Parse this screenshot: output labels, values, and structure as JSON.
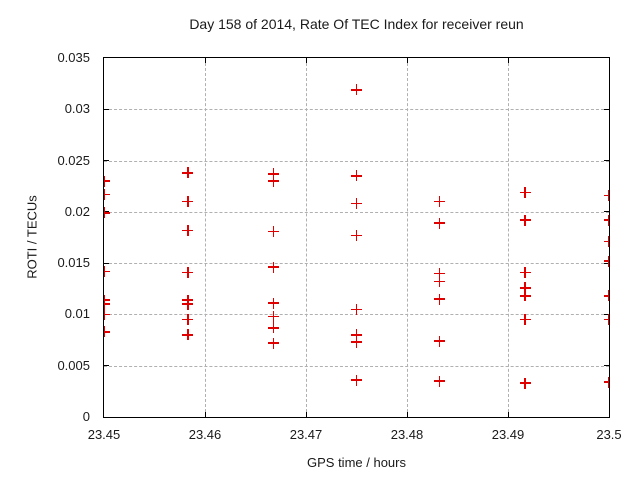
{
  "chart_data": {
    "type": "scatter",
    "title": "Day 158 of 2014, Rate Of TEC Index for receiver reun",
    "xlabel": "GPS time / hours",
    "ylabel": "ROTI / TECUs",
    "xlim": [
      23.45,
      23.5
    ],
    "ylim": [
      0,
      0.035
    ],
    "xticks": [
      {
        "label": "23.45",
        "value": 23.45
      },
      {
        "label": "23.46",
        "value": 23.46
      },
      {
        "label": "23.47",
        "value": 23.47
      },
      {
        "label": "23.48",
        "value": 23.48
      },
      {
        "label": "23.49",
        "value": 23.49
      },
      {
        "label": "23.5",
        "value": 23.5
      }
    ],
    "yticks": [
      {
        "label": "0",
        "value": 0
      },
      {
        "label": "0.005",
        "value": 0.005
      },
      {
        "label": "0.01",
        "value": 0.01
      },
      {
        "label": "0.015",
        "value": 0.015
      },
      {
        "label": "0.02",
        "value": 0.02
      },
      {
        "label": "0.025",
        "value": 0.025
      },
      {
        "label": "0.03",
        "value": 0.03
      },
      {
        "label": "0.035",
        "value": 0.035
      }
    ],
    "grid": true,
    "legend": false,
    "marker": "plus",
    "marker_color": "#e00000",
    "grid_color": "#b0b0b0",
    "border_color": "#000000",
    "points": [
      [
        23.45,
        0.023
      ],
      [
        23.45,
        0.0217
      ],
      [
        23.45,
        0.0199
      ],
      [
        23.45,
        0.0142
      ],
      [
        23.45,
        0.0114
      ],
      [
        23.45,
        0.011
      ],
      [
        23.45,
        0.01
      ],
      [
        23.45,
        0.0083
      ],
      [
        23.4583,
        0.0238
      ],
      [
        23.4583,
        0.021
      ],
      [
        23.4583,
        0.0182
      ],
      [
        23.4583,
        0.0141
      ],
      [
        23.4583,
        0.0114
      ],
      [
        23.4583,
        0.011
      ],
      [
        23.4583,
        0.0095
      ],
      [
        23.4583,
        0.008
      ],
      [
        23.4668,
        0.0237
      ],
      [
        23.4668,
        0.023
      ],
      [
        23.4668,
        0.0181
      ],
      [
        23.4668,
        0.0146
      ],
      [
        23.4668,
        0.0111
      ],
      [
        23.4668,
        0.0098
      ],
      [
        23.4668,
        0.0087
      ],
      [
        23.4668,
        0.0072
      ],
      [
        23.475,
        0.0319
      ],
      [
        23.475,
        0.0235
      ],
      [
        23.475,
        0.0208
      ],
      [
        23.475,
        0.0177
      ],
      [
        23.475,
        0.0105
      ],
      [
        23.475,
        0.008
      ],
      [
        23.475,
        0.0073
      ],
      [
        23.475,
        0.0036
      ],
      [
        23.4832,
        0.021
      ],
      [
        23.4832,
        0.0189
      ],
      [
        23.4832,
        0.014
      ],
      [
        23.4832,
        0.0132
      ],
      [
        23.4832,
        0.0115
      ],
      [
        23.4832,
        0.0074
      ],
      [
        23.4832,
        0.0035
      ],
      [
        23.4917,
        0.0219
      ],
      [
        23.4917,
        0.0192
      ],
      [
        23.4917,
        0.0141
      ],
      [
        23.4917,
        0.0126
      ],
      [
        23.4917,
        0.0118
      ],
      [
        23.4917,
        0.0095
      ],
      [
        23.4917,
        0.0033
      ],
      [
        23.5,
        0.0216
      ],
      [
        23.5,
        0.0192
      ],
      [
        23.5,
        0.0171
      ],
      [
        23.5,
        0.0152
      ],
      [
        23.5,
        0.0118
      ],
      [
        23.5,
        0.0095
      ],
      [
        23.5,
        0.0034
      ]
    ]
  }
}
